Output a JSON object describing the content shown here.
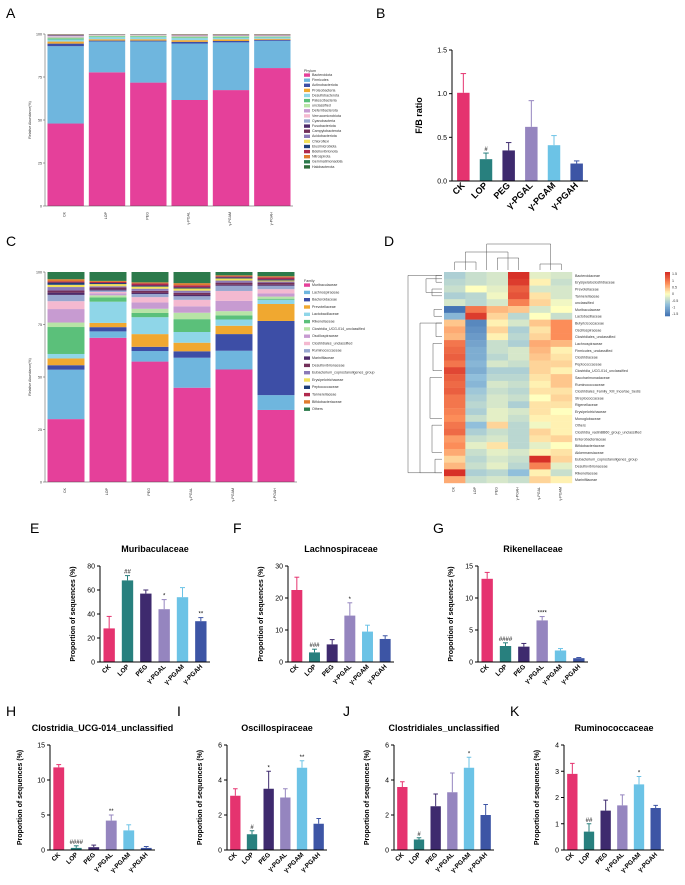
{
  "chart_data": [
    {
      "panel": "A",
      "type": "bar",
      "stacked": true,
      "ylabel": "Relative Abundance(%)",
      "yticks": [
        "0",
        "25",
        "50",
        "75",
        "100"
      ],
      "categories": [
        "CK",
        "LOP",
        "PEG",
        "γ-PGAL",
        "γ-PGAM",
        "γ-PGAH"
      ],
      "legend_title": "Phylum",
      "series": [
        {
          "name": "Bacteroidota",
          "color": "#e5409a",
          "values": [
            48,
            78,
            72,
            62,
            68,
            81
          ]
        },
        {
          "name": "Firmicutes",
          "color": "#6fb6de",
          "values": [
            45,
            18,
            24,
            33,
            28,
            16
          ]
        },
        {
          "name": "Actinobacteriota",
          "color": "#3d4ea6",
          "values": [
            1.5,
            0.5,
            0.5,
            1,
            0.8,
            0.6
          ]
        },
        {
          "name": "Proteobacteria",
          "color": "#f0a830",
          "values": [
            1.2,
            0.8,
            0.8,
            1,
            1,
            0.6
          ]
        },
        {
          "name": "Desulfobacterota",
          "color": "#8fd6e8",
          "values": [
            1.2,
            1.2,
            1.2,
            1.2,
            1,
            0.8
          ]
        },
        {
          "name": "Patescibacteria",
          "color": "#5bc07a",
          "values": [
            0.6,
            0.5,
            0.5,
            0.5,
            0.5,
            0.4
          ]
        },
        {
          "name": "unclassified",
          "color": "#b7e4a6",
          "values": [
            0.6,
            0.4,
            0.4,
            0.5,
            0.4,
            0.3
          ]
        },
        {
          "name": "Deferribacterota",
          "color": "#c79bd1",
          "values": [
            0.4,
            0.2,
            0.2,
            0.3,
            0.2,
            0.2
          ]
        },
        {
          "name": "Verrucomicrobiota",
          "color": "#f4b9d0",
          "values": [
            0.3,
            0.2,
            0.2,
            0.2,
            0.1,
            0.2
          ]
        },
        {
          "name": "Cyanobacteria",
          "color": "#98a7cf",
          "values": [
            0.3,
            0.1,
            0.1,
            0.1,
            0.1,
            0.1
          ]
        },
        {
          "name": "Fusobacteriota",
          "color": "#4e2a6a",
          "values": [
            0.2,
            0.05,
            0.05,
            0.1,
            0.1,
            0.1
          ]
        },
        {
          "name": "Campylobacterota",
          "color": "#73305a",
          "values": [
            0.2,
            0.05,
            0.05,
            0.1,
            0.1,
            0.1
          ]
        },
        {
          "name": "Acidobacteriota",
          "color": "#8b7ab8",
          "values": [
            0.1,
            0.05,
            0.05,
            0.1,
            0.1,
            0.1
          ]
        },
        {
          "name": "Chloroflexi",
          "color": "#f1e05a",
          "values": [
            0.1,
            0.05,
            0.05,
            0.1,
            0.1,
            0.1
          ]
        },
        {
          "name": "Elusimicrobiota",
          "color": "#1e3d78",
          "values": [
            0.1,
            0.05,
            0.05,
            0.1,
            0.1,
            0.1
          ]
        },
        {
          "name": "Bdellovibrionota",
          "color": "#b02a4e",
          "values": [
            0.1,
            0.05,
            0.05,
            0.1,
            0.1,
            0.1
          ]
        },
        {
          "name": "Nitrospirota",
          "color": "#e07b2e",
          "values": [
            0.1,
            0.05,
            0.05,
            0.1,
            0.1,
            0.1
          ]
        },
        {
          "name": "Gemmatimonadota",
          "color": "#2c7a4b",
          "values": [
            0.05,
            0.05,
            0.05,
            0.05,
            0.05,
            0.05
          ]
        },
        {
          "name": "Halobacterota",
          "color": "#2e6b3a",
          "values": [
            0.05,
            0.05,
            0.05,
            0.05,
            0.05,
            0.05
          ]
        }
      ]
    },
    {
      "panel": "B",
      "type": "bar",
      "ylabel": "F/B ratio",
      "ylim": [
        0,
        1.5
      ],
      "yticks": [
        "0.0",
        "0.5",
        "1.0",
        "1.5"
      ],
      "categories": [
        "CK",
        "LOP",
        "PEG",
        "γ-PGAL",
        "γ-PGAM",
        "γ-PGAH"
      ],
      "values": [
        1.01,
        0.25,
        0.35,
        0.62,
        0.41,
        0.2
      ],
      "errors": [
        0.22,
        0.07,
        0.09,
        0.3,
        0.11,
        0.03
      ],
      "annotations": [
        "",
        "#",
        "",
        "",
        "",
        ""
      ]
    },
    {
      "panel": "C",
      "type": "bar",
      "stacked": true,
      "ylabel": "Relative Abundance(%)",
      "yticks": [
        "0",
        "25",
        "50",
        "75",
        "100"
      ],
      "categories": [
        "CK",
        "LOP",
        "PEG",
        "γ-PGAL",
        "γ-PGAM",
        "γ-PGAH"
      ],
      "legend_title": "Family",
      "series": [
        {
          "name": "Muribaculaceae",
          "color": "#e5409a",
          "values": [
            28,
            68,
            57,
            44,
            54,
            34
          ]
        },
        {
          "name": "Lachnospiraceae",
          "color": "#6fb6de",
          "values": [
            22,
            3,
            5,
            14,
            9,
            7
          ]
        },
        {
          "name": "Bacteroidaceae",
          "color": "#3d4ea6",
          "values": [
            2,
            2,
            2,
            3,
            8,
            35
          ]
        },
        {
          "name": "Prevotellaceae",
          "color": "#f0a830",
          "values": [
            3,
            2,
            6,
            4,
            4,
            8
          ]
        },
        {
          "name": "Lactobacillaceae",
          "color": "#8fd6e8",
          "values": [
            2,
            10,
            8,
            5,
            3,
            2
          ]
        },
        {
          "name": "Rikenellaceae",
          "color": "#5bc07a",
          "values": [
            12,
            2,
            2,
            6,
            2,
            0.5
          ]
        },
        {
          "name": "Clostridia_UCG-014_unclassified",
          "color": "#b7e4a6",
          "values": [
            2,
            1,
            2,
            3,
            2,
            1
          ]
        },
        {
          "name": "Oscillospiraceae",
          "color": "#c79bd1",
          "values": [
            6,
            1,
            3,
            3,
            5,
            1.5
          ]
        },
        {
          "name": "Clostridiales_unclassified",
          "color": "#f4b9d0",
          "values": [
            3.5,
            0.6,
            2.5,
            3,
            4.7,
            2
          ]
        },
        {
          "name": "Ruminococcaceae",
          "color": "#98a7cf",
          "values": [
            2.8,
            0.7,
            1.5,
            1.7,
            2.5,
            1.6
          ]
        },
        {
          "name": "Marinifilaceae",
          "color": "#4e2a6a",
          "values": [
            1,
            0.5,
            0.5,
            0.6,
            0.5,
            0.5
          ]
        },
        {
          "name": "Desulfovibrionaceae",
          "color": "#73305a",
          "values": [
            1,
            1,
            1,
            1,
            1,
            1
          ]
        },
        {
          "name": "Eubacterium_coprostanoligenes_group",
          "color": "#8b7ab8",
          "values": [
            1.5,
            0.5,
            1,
            1,
            1,
            0.5
          ]
        },
        {
          "name": "Erysipelotrichaceae",
          "color": "#f1e05a",
          "values": [
            1,
            1,
            1,
            1,
            1,
            0.5
          ]
        },
        {
          "name": "Peptococcaceae",
          "color": "#1e3d78",
          "values": [
            1,
            0.5,
            0.5,
            0.5,
            0.5,
            0.5
          ]
        },
        {
          "name": "Tannerellaceae",
          "color": "#b02a4e",
          "values": [
            0.5,
            0.5,
            1,
            1,
            0.5,
            1
          ]
        },
        {
          "name": "Bifidobacteriaceae",
          "color": "#e07b2e",
          "values": [
            1,
            0.5,
            0.5,
            1,
            0.5,
            0.5
          ]
        },
        {
          "name": "Others",
          "color": "#2c7a4b",
          "values": [
            3.2,
            4.2,
            4.9,
            5.2,
            1.6,
            2
          ]
        }
      ]
    },
    {
      "panel": "D",
      "type": "heatmap",
      "columns": [
        "CK",
        "LOP",
        "PEG",
        "γ-PGAH",
        "γ-PGAL",
        "γ-PGAM"
      ],
      "rows": [
        "Bacteroidaceae",
        "Erysipelatoclostridiaceae",
        "Prevotellaceae",
        "Tannerellaceae",
        "unclassified",
        "Muribaculaceae",
        "Lactobacillaceae",
        "Butyricicoccaceae",
        "Oscillospiraceae",
        "Clostridiales_unclassified",
        "Lachnospiraceae",
        "Firmicutes_unclassified",
        "Clostridiaceae",
        "Peptococcaceae",
        "Clostridia_UCG-014_unclassified",
        "Saccharimonadaceae",
        "Ruminococcaceae",
        "Clostridiales_Family_XIII_Incertae_Sedis",
        "Streptococcaceae",
        "Rigenellaceae",
        "Erysipelotrichaceae",
        "Monoglobaceae",
        "Others",
        "Clostridia_vadinBB60_group_unclassified",
        "Enterobacteriaceae",
        "Bifidobacteriaceae",
        "Akkermansiaceae",
        "Eubacterium_coprostanoligenes_group",
        "Desulfovibrionaceae",
        "Rikenellaceae",
        "Marinifilaceae"
      ],
      "colorbar_ticks": [
        "1.5",
        "1",
        "0.5",
        "0",
        "-0.5",
        "-1",
        "-1.5"
      ],
      "z": [
        [
          -0.6,
          -0.4,
          -0.3,
          1.6,
          -0.2,
          -0.3
        ],
        [
          -0.5,
          -0.4,
          -0.3,
          1.5,
          0.1,
          -0.4
        ],
        [
          -0.4,
          0.0,
          -0.2,
          1.2,
          -0.3,
          -0.3
        ],
        [
          -0.6,
          -0.5,
          -0.1,
          1.3,
          0.2,
          -0.3
        ],
        [
          -0.3,
          -0.5,
          -0.3,
          0.9,
          0.3,
          -0.1
        ],
        [
          -1.6,
          1.0,
          0.5,
          0.4,
          -0.3,
          0.0
        ],
        [
          -0.9,
          1.5,
          0.3,
          -0.5,
          0.0,
          -0.4
        ],
        [
          0.4,
          -1.4,
          0.1,
          -0.3,
          0.4,
          0.8
        ],
        [
          0.6,
          -1.3,
          0.3,
          -0.6,
          0.2,
          0.8
        ],
        [
          0.5,
          -1.2,
          0.1,
          -0.5,
          0.3,
          0.8
        ],
        [
          1.0,
          -1.1,
          -0.4,
          -0.6,
          0.6,
          0.5
        ],
        [
          1.1,
          -1.0,
          -0.4,
          -0.3,
          0.5,
          0.1
        ],
        [
          1.2,
          -1.0,
          -0.5,
          -0.3,
          0.4,
          0.2
        ],
        [
          1.0,
          -0.9,
          -0.3,
          -0.4,
          0.3,
          0.3
        ],
        [
          1.4,
          -1.0,
          -0.6,
          -0.6,
          0.3,
          0.1
        ],
        [
          1.2,
          -0.8,
          -0.5,
          -0.5,
          0.2,
          0.4
        ],
        [
          1.1,
          -0.9,
          -0.3,
          -0.4,
          0.1,
          0.4
        ],
        [
          1.2,
          -0.7,
          -0.4,
          -0.5,
          0.2,
          0.2
        ],
        [
          1.0,
          -0.6,
          -0.3,
          -0.4,
          0.0,
          0.3
        ],
        [
          1.0,
          -0.5,
          -0.3,
          -0.6,
          0.2,
          0.2
        ],
        [
          0.9,
          -0.6,
          -0.2,
          -0.3,
          0.2,
          0.0
        ],
        [
          0.8,
          -0.4,
          -0.2,
          -0.4,
          0.1,
          0.1
        ],
        [
          1.0,
          -0.8,
          0.3,
          -0.5,
          -0.1,
          0.1
        ],
        [
          1.1,
          -0.6,
          -0.4,
          -0.5,
          0.3,
          0.1
        ],
        [
          0.7,
          -0.4,
          -0.3,
          -0.5,
          0.2,
          0.3
        ],
        [
          0.8,
          -0.2,
          0.2,
          -0.5,
          -0.2,
          0.0
        ],
        [
          0.6,
          -0.4,
          -0.2,
          -0.3,
          0.1,
          0.2
        ],
        [
          0.3,
          -0.5,
          -0.3,
          -0.4,
          1.6,
          0.3
        ],
        [
          0.5,
          -0.4,
          -0.2,
          -0.5,
          0.9,
          -0.2
        ],
        [
          1.6,
          -0.6,
          -0.5,
          -0.8,
          0.1,
          -0.4
        ],
        [
          0.6,
          -0.4,
          -0.3,
          -0.4,
          0.3,
          0.1
        ]
      ]
    },
    {
      "panel": "E",
      "type": "bar",
      "title": "Muribaculaceae",
      "ylabel": "Proportion of sequences (%)",
      "ylim": [
        0,
        80
      ],
      "yticks": [
        "0",
        "20",
        "40",
        "60",
        "80"
      ],
      "categories": [
        "CK",
        "LOP",
        "PEG",
        "γ-PGAL",
        "γ-PGAM",
        "γ-PGAH"
      ],
      "values": [
        28,
        68,
        57,
        44,
        54,
        34
      ],
      "errors": [
        10,
        4,
        3,
        8,
        8,
        3
      ],
      "annotations": [
        "",
        "##",
        "",
        "*",
        "",
        "**"
      ]
    },
    {
      "panel": "F",
      "type": "bar",
      "title": "Lachnospiraceae",
      "ylabel": "Proportion of sequences (%)",
      "ylim": [
        0,
        30
      ],
      "yticks": [
        "0",
        "10",
        "20",
        "30"
      ],
      "categories": [
        "CK",
        "LOP",
        "PEG",
        "γ-PGAL",
        "γ-PGAM",
        "γ-PGAH"
      ],
      "values": [
        22.5,
        3,
        5.5,
        14.5,
        9.5,
        7.2
      ],
      "errors": [
        4,
        1,
        1.5,
        4,
        2,
        1
      ],
      "annotations": [
        "",
        "###",
        "",
        "*",
        "",
        ""
      ]
    },
    {
      "panel": "G",
      "type": "bar",
      "title": "Rikenellaceae",
      "ylabel": "Proportion of sequences (%)",
      "ylim": [
        0,
        15
      ],
      "yticks": [
        "0",
        "5",
        "10",
        "15"
      ],
      "categories": [
        "CK",
        "LOP",
        "PEG",
        "γ-PGAL",
        "γ-PGAM",
        "γ-PGAH"
      ],
      "values": [
        13,
        2.5,
        2.4,
        6.5,
        1.8,
        0.6
      ],
      "errors": [
        1,
        0.5,
        0.5,
        0.6,
        0.3,
        0.1
      ],
      "annotations": [
        "",
        "####",
        "",
        "****",
        "",
        ""
      ]
    },
    {
      "panel": "H",
      "type": "bar",
      "title": "Clostridia_UCG-014_unclassified",
      "ylabel": "Proportion of sequences (%)",
      "ylim": [
        0,
        15
      ],
      "yticks": [
        "0",
        "5",
        "10",
        "15"
      ],
      "categories": [
        "CK",
        "LOP",
        "PEG",
        "γ-PGAL",
        "γ-PGAM",
        "γ-PGAH"
      ],
      "values": [
        11.8,
        0.3,
        0.4,
        4.2,
        2.8,
        0.3
      ],
      "errors": [
        0.4,
        0.3,
        0.3,
        0.8,
        0.8,
        0.2
      ],
      "annotations": [
        "",
        "####",
        "",
        "**",
        "",
        ""
      ]
    },
    {
      "panel": "I",
      "type": "bar",
      "title": "Oscillospiraceae",
      "ylabel": "Proportion of sequences (%)",
      "ylim": [
        0,
        6
      ],
      "yticks": [
        "0",
        "2",
        "4",
        "6"
      ],
      "categories": [
        "CK",
        "LOP",
        "PEG",
        "γ-PGAL",
        "γ-PGAM",
        "γ-PGAH"
      ],
      "values": [
        3.1,
        0.9,
        3.5,
        3.0,
        4.7,
        1.5
      ],
      "errors": [
        0.4,
        0.2,
        1,
        0.5,
        0.4,
        0.3
      ],
      "annotations": [
        "",
        "#",
        "*",
        "",
        "**",
        ""
      ]
    },
    {
      "panel": "J",
      "type": "bar",
      "title": "Clostridiales_unclassified",
      "ylabel": "Proportion of sequences (%)",
      "ylim": [
        0,
        6
      ],
      "yticks": [
        "0",
        "2",
        "4",
        "6"
      ],
      "categories": [
        "CK",
        "LOP",
        "PEG",
        "γ-PGAL",
        "γ-PGAM",
        "γ-PGAH"
      ],
      "values": [
        3.6,
        0.6,
        2.5,
        3.3,
        4.7,
        2.0
      ],
      "errors": [
        0.3,
        0.1,
        0.7,
        1.1,
        0.6,
        0.6
      ],
      "annotations": [
        "",
        "#",
        "",
        "",
        "*",
        ""
      ]
    },
    {
      "panel": "K",
      "type": "bar",
      "title": "Ruminococcaceae",
      "ylabel": "Proportion of sequences (%)",
      "ylim": [
        0,
        4
      ],
      "yticks": [
        "0",
        "1",
        "2",
        "3",
        "4"
      ],
      "categories": [
        "CK",
        "LOP",
        "PEG",
        "γ-PGAL",
        "γ-PGAM",
        "γ-PGAH"
      ],
      "values": [
        2.9,
        0.7,
        1.5,
        1.7,
        2.5,
        1.6
      ],
      "errors": [
        0.4,
        0.3,
        0.4,
        0.4,
        0.3,
        0.1
      ],
      "annotations": [
        "",
        "##",
        "",
        "",
        "*",
        ""
      ]
    }
  ],
  "bar_colors": [
    "#e5336f",
    "#28807e",
    "#3e2a6e",
    "#9585bf",
    "#6cc3e6",
    "#3d55a5"
  ]
}
